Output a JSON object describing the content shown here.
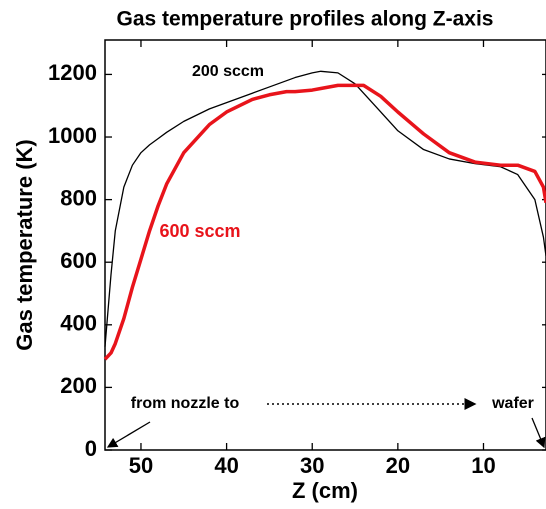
{
  "chart_data": {
    "type": "line",
    "title": "Gas temperature profiles along Z-axis",
    "xlabel": "Z (cm)",
    "ylabel": "Gas temperature (K)",
    "x": [
      54.2,
      53.5,
      53,
      52,
      51,
      50,
      49,
      48,
      47,
      45,
      42,
      40,
      37,
      35,
      33,
      32,
      30,
      29,
      27,
      25,
      24,
      22,
      20,
      17,
      14,
      11,
      8,
      6,
      4,
      3,
      2.7
    ],
    "series": [
      {
        "name": "200 sccm",
        "color": "#000000",
        "values": [
          330,
          560,
          700,
          840,
          910,
          950,
          975,
          995,
          1015,
          1050,
          1090,
          1110,
          1140,
          1160,
          1180,
          1190,
          1205,
          1210,
          1205,
          1170,
          1140,
          1080,
          1020,
          960,
          930,
          915,
          905,
          880,
          800,
          680,
          620
        ]
      },
      {
        "name": "600 sccm",
        "color": "#e8141b",
        "values": [
          290,
          310,
          340,
          420,
          520,
          610,
          700,
          780,
          850,
          950,
          1040,
          1080,
          1120,
          1135,
          1145,
          1145,
          1150,
          1155,
          1165,
          1165,
          1165,
          1130,
          1080,
          1010,
          950,
          920,
          910,
          910,
          890,
          840,
          790
        ]
      }
    ],
    "annotations": [
      "from nozzle to",
      "wafer"
    ],
    "xlim": [
      54.2,
      2.7
    ],
    "xticks": [
      50,
      40,
      30,
      20,
      10
    ],
    "ylim": [
      0,
      1310
    ],
    "yticks": [
      0,
      200,
      400,
      600,
      800,
      1000,
      1200
    ]
  }
}
